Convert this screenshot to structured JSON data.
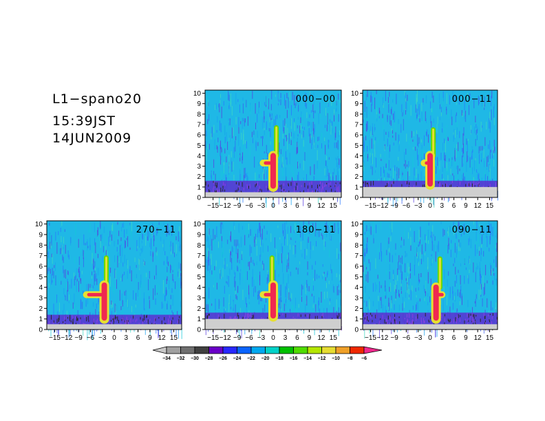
{
  "title": {
    "line1": "L1−spano20",
    "line2": "15:39JST",
    "line3": "14JUN2009"
  },
  "chart_data": [
    {
      "type": "heatmap",
      "label": "000−00",
      "xlim": [
        -17,
        17
      ],
      "ylim": [
        0,
        10.3
      ],
      "xticks": [
        "−15",
        "−12",
        "−9",
        "−6",
        "−3",
        "0",
        "3",
        "6",
        "9",
        "12",
        "15"
      ],
      "yticks": [
        "0",
        "1",
        "2",
        "3",
        "4",
        "5",
        "6",
        "7",
        "8",
        "9",
        "10"
      ],
      "features": {
        "noise_floor_y": 1.6,
        "stem": {
          "x": 0,
          "y_from": 1.0,
          "y_to": 4.0
        },
        "spike": {
          "x": 0.8,
          "y_from": 4.0,
          "y_to": 6.7
        },
        "arm": {
          "x_from": -2.5,
          "x_to": 0,
          "y": 3.3
        },
        "lower_fill": false
      }
    },
    {
      "type": "heatmap",
      "label": "000−11",
      "xlim": [
        -17,
        17
      ],
      "ylim": [
        0,
        10.3
      ],
      "xticks": [
        "−15",
        "−12",
        "−9",
        "−6",
        "−3",
        "0",
        "3",
        "6",
        "9",
        "12",
        "15"
      ],
      "yticks": [
        "0",
        "1",
        "2",
        "3",
        "4",
        "5",
        "6",
        "7",
        "8",
        "9",
        "10"
      ],
      "features": {
        "noise_floor_y": 1.6,
        "stem": {
          "x": 0,
          "y_from": 1.2,
          "y_to": 4.0
        },
        "spike": {
          "x": 0.8,
          "y_from": 4.0,
          "y_to": 6.5
        },
        "arm": {
          "x_from": -1.5,
          "x_to": 0,
          "y": 3.3
        },
        "lower_fill": true
      }
    },
    {
      "type": "heatmap",
      "label": "270−11",
      "xlim": [
        -17,
        17
      ],
      "ylim": [
        0,
        10.3
      ],
      "xticks": [
        "−15",
        "−12",
        "−9",
        "−6",
        "−3",
        "0",
        "3",
        "6",
        "9",
        "12",
        "15"
      ],
      "yticks": [
        "0",
        "1",
        "2",
        "3",
        "4",
        "5",
        "6",
        "7",
        "8",
        "9",
        "10"
      ],
      "features": {
        "noise_floor_y": 1.4,
        "stem": {
          "x": -2.5,
          "y_from": 1.0,
          "y_to": 4.2
        },
        "spike": {
          "x": -2.0,
          "y_from": 4.2,
          "y_to": 6.8
        },
        "arm": {
          "x_from": -7,
          "x_to": -2.5,
          "y": 3.3
        },
        "lower_fill": false
      }
    },
    {
      "type": "heatmap",
      "label": "180−11",
      "xlim": [
        -17,
        17
      ],
      "ylim": [
        0,
        10.3
      ],
      "xticks": [
        "−15",
        "−12",
        "−9",
        "−6",
        "−3",
        "0",
        "3",
        "6",
        "9",
        "12",
        "15"
      ],
      "yticks": [
        "0",
        "1",
        "2",
        "3",
        "4",
        "5",
        "6",
        "7",
        "8",
        "9",
        "10"
      ],
      "features": {
        "noise_floor_y": 1.6,
        "stem": {
          "x": 0,
          "y_from": 1.2,
          "y_to": 4.2
        },
        "spike": {
          "x": -0.3,
          "y_from": 4.2,
          "y_to": 6.8
        },
        "arm": {
          "x_from": -2.5,
          "x_to": 0,
          "y": 3.3
        },
        "lower_fill": true
      }
    },
    {
      "type": "heatmap",
      "label": "090−11",
      "xlim": [
        -17,
        17
      ],
      "ylim": [
        0,
        10.3
      ],
      "xticks": [
        "−15",
        "−12",
        "−9",
        "−6",
        "−3",
        "0",
        "3",
        "6",
        "9",
        "12",
        "15"
      ],
      "yticks": [
        "0",
        "1",
        "2",
        "3",
        "4",
        "5",
        "6",
        "7",
        "8",
        "9",
        "10"
      ],
      "features": {
        "noise_floor_y": 1.6,
        "stem": {
          "x": 1.5,
          "y_from": 1.0,
          "y_to": 4.0
        },
        "spike": {
          "x": 2.5,
          "y_from": 4.0,
          "y_to": 6.7
        },
        "arm": {
          "x_from": 1.5,
          "x_to": 3,
          "y": 3.3
        },
        "lower_fill": false
      }
    }
  ],
  "colorbar": {
    "labels": [
      "−34",
      "−32",
      "−30",
      "−28",
      "−26",
      "−24",
      "−22",
      "−20",
      "−18",
      "−16",
      "−14",
      "−12",
      "−10",
      "−8",
      "−6"
    ],
    "colors": [
      "#c8c8c8",
      "#a0a0a0",
      "#707070",
      "#404040",
      "#6a00c8",
      "#2828ff",
      "#0a64ff",
      "#00a8f0",
      "#00d2c8",
      "#00c000",
      "#50dc00",
      "#b4e600",
      "#e6dc32",
      "#f0a028",
      "#f02800",
      "#f0288c"
    ]
  }
}
